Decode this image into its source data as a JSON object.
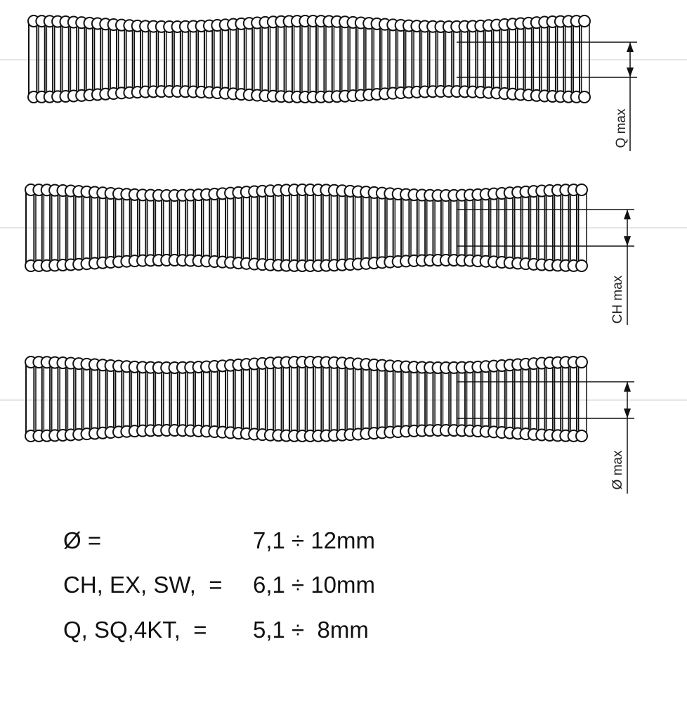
{
  "drawings": [
    {
      "label": "Q max"
    },
    {
      "label": "CH max"
    },
    {
      "label": "Ø max"
    }
  ],
  "specs": [
    {
      "name": "Ø =",
      "range": "7,1 ÷ 12mm"
    },
    {
      "name": "CH, EX, SW,  =",
      "range": "6,1 ÷ 10mm"
    },
    {
      "name": "Q, SQ,4KT,  =",
      "range": "5,1 ÷  8mm"
    }
  ]
}
